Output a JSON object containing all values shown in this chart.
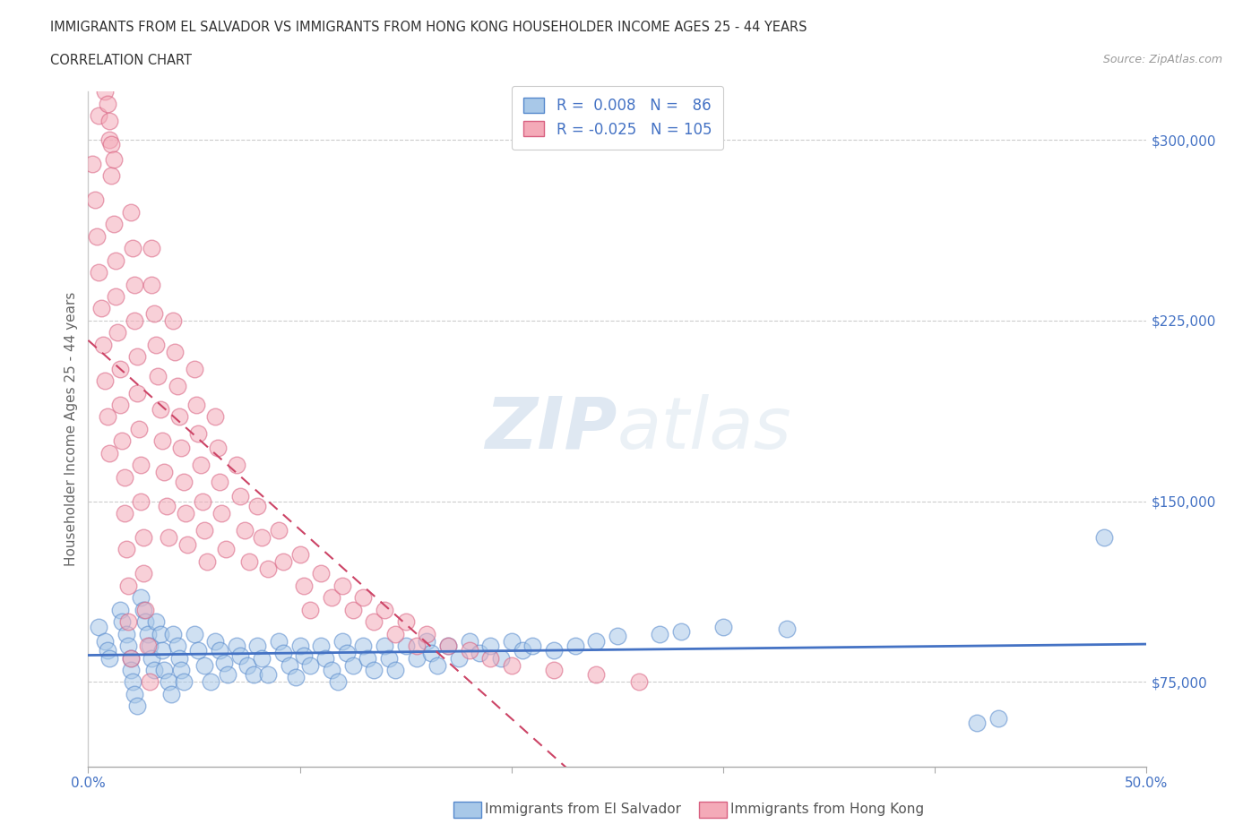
{
  "title_line1": "IMMIGRANTS FROM EL SALVADOR VS IMMIGRANTS FROM HONG KONG HOUSEHOLDER INCOME AGES 25 - 44 YEARS",
  "title_line2": "CORRELATION CHART",
  "source_text": "Source: ZipAtlas.com",
  "ylabel": "Householder Income Ages 25 - 44 years",
  "xlim": [
    0.0,
    0.5
  ],
  "ylim": [
    40000,
    320000
  ],
  "yticks": [
    75000,
    150000,
    225000,
    300000
  ],
  "ytick_labels": [
    "$75,000",
    "$150,000",
    "$225,000",
    "$300,000"
  ],
  "xticks": [
    0.0,
    0.1,
    0.2,
    0.3,
    0.4,
    0.5
  ],
  "xtick_labels": [
    "0.0%",
    "",
    "",
    "",
    "",
    "50.0%"
  ],
  "color_el_salvador_fill": "#a8c8e8",
  "color_hong_kong_fill": "#f4aab8",
  "color_el_salvador_edge": "#5588cc",
  "color_hong_kong_edge": "#d86080",
  "color_el_salvador_line": "#4472c4",
  "color_hong_kong_line": "#cc4466",
  "color_text_blue": "#4472c4",
  "color_grid": "#cccccc",
  "legend_label_el_salvador": "Immigrants from El Salvador",
  "legend_label_hong_kong": "Immigrants from Hong Kong",
  "el_salvador_x": [
    0.005,
    0.008,
    0.009,
    0.01,
    0.015,
    0.016,
    0.018,
    0.019,
    0.02,
    0.02,
    0.021,
    0.022,
    0.023,
    0.025,
    0.026,
    0.027,
    0.028,
    0.029,
    0.03,
    0.031,
    0.032,
    0.034,
    0.035,
    0.036,
    0.038,
    0.039,
    0.04,
    0.042,
    0.043,
    0.044,
    0.045,
    0.05,
    0.052,
    0.055,
    0.058,
    0.06,
    0.062,
    0.064,
    0.066,
    0.07,
    0.072,
    0.075,
    0.078,
    0.08,
    0.082,
    0.085,
    0.09,
    0.092,
    0.095,
    0.098,
    0.1,
    0.102,
    0.105,
    0.11,
    0.112,
    0.115,
    0.118,
    0.12,
    0.122,
    0.125,
    0.13,
    0.132,
    0.135,
    0.14,
    0.142,
    0.145,
    0.15,
    0.155,
    0.16,
    0.162,
    0.165,
    0.17,
    0.175,
    0.18,
    0.185,
    0.19,
    0.195,
    0.2,
    0.205,
    0.21,
    0.22,
    0.23,
    0.24,
    0.25,
    0.27,
    0.28,
    0.3,
    0.33,
    0.42,
    0.43,
    0.48
  ],
  "el_salvador_y": [
    98000,
    92000,
    88000,
    85000,
    105000,
    100000,
    95000,
    90000,
    85000,
    80000,
    75000,
    70000,
    65000,
    110000,
    105000,
    100000,
    95000,
    90000,
    85000,
    80000,
    100000,
    95000,
    88000,
    80000,
    75000,
    70000,
    95000,
    90000,
    85000,
    80000,
    75000,
    95000,
    88000,
    82000,
    75000,
    92000,
    88000,
    83000,
    78000,
    90000,
    86000,
    82000,
    78000,
    90000,
    85000,
    78000,
    92000,
    87000,
    82000,
    77000,
    90000,
    86000,
    82000,
    90000,
    85000,
    80000,
    75000,
    92000,
    87000,
    82000,
    90000,
    85000,
    80000,
    90000,
    85000,
    80000,
    90000,
    85000,
    92000,
    87000,
    82000,
    90000,
    85000,
    92000,
    87000,
    90000,
    85000,
    92000,
    88000,
    90000,
    88000,
    90000,
    92000,
    94000,
    95000,
    96000,
    98000,
    97000,
    58000,
    60000,
    135000
  ],
  "hong_kong_x": [
    0.002,
    0.003,
    0.004,
    0.005,
    0.005,
    0.006,
    0.007,
    0.008,
    0.009,
    0.01,
    0.01,
    0.011,
    0.012,
    0.013,
    0.013,
    0.014,
    0.015,
    0.015,
    0.016,
    0.017,
    0.017,
    0.018,
    0.019,
    0.019,
    0.02,
    0.02,
    0.021,
    0.022,
    0.022,
    0.023,
    0.023,
    0.024,
    0.025,
    0.025,
    0.026,
    0.026,
    0.027,
    0.028,
    0.029,
    0.03,
    0.03,
    0.031,
    0.032,
    0.033,
    0.034,
    0.035,
    0.036,
    0.037,
    0.038,
    0.04,
    0.041,
    0.042,
    0.043,
    0.044,
    0.045,
    0.046,
    0.047,
    0.05,
    0.051,
    0.052,
    0.053,
    0.054,
    0.055,
    0.056,
    0.06,
    0.061,
    0.062,
    0.063,
    0.065,
    0.07,
    0.072,
    0.074,
    0.076,
    0.08,
    0.082,
    0.085,
    0.09,
    0.092,
    0.1,
    0.102,
    0.105,
    0.11,
    0.115,
    0.12,
    0.125,
    0.13,
    0.135,
    0.14,
    0.145,
    0.15,
    0.155,
    0.16,
    0.17,
    0.18,
    0.19,
    0.2,
    0.22,
    0.24,
    0.26,
    0.008,
    0.009,
    0.01,
    0.011,
    0.012
  ],
  "hong_kong_y": [
    290000,
    275000,
    260000,
    245000,
    310000,
    230000,
    215000,
    200000,
    185000,
    170000,
    300000,
    285000,
    265000,
    250000,
    235000,
    220000,
    205000,
    190000,
    175000,
    160000,
    145000,
    130000,
    115000,
    100000,
    85000,
    270000,
    255000,
    240000,
    225000,
    210000,
    195000,
    180000,
    165000,
    150000,
    135000,
    120000,
    105000,
    90000,
    75000,
    255000,
    240000,
    228000,
    215000,
    202000,
    188000,
    175000,
    162000,
    148000,
    135000,
    225000,
    212000,
    198000,
    185000,
    172000,
    158000,
    145000,
    132000,
    205000,
    190000,
    178000,
    165000,
    150000,
    138000,
    125000,
    185000,
    172000,
    158000,
    145000,
    130000,
    165000,
    152000,
    138000,
    125000,
    148000,
    135000,
    122000,
    138000,
    125000,
    128000,
    115000,
    105000,
    120000,
    110000,
    115000,
    105000,
    110000,
    100000,
    105000,
    95000,
    100000,
    90000,
    95000,
    90000,
    88000,
    85000,
    82000,
    80000,
    78000,
    75000,
    320000,
    315000,
    308000,
    298000,
    292000
  ]
}
